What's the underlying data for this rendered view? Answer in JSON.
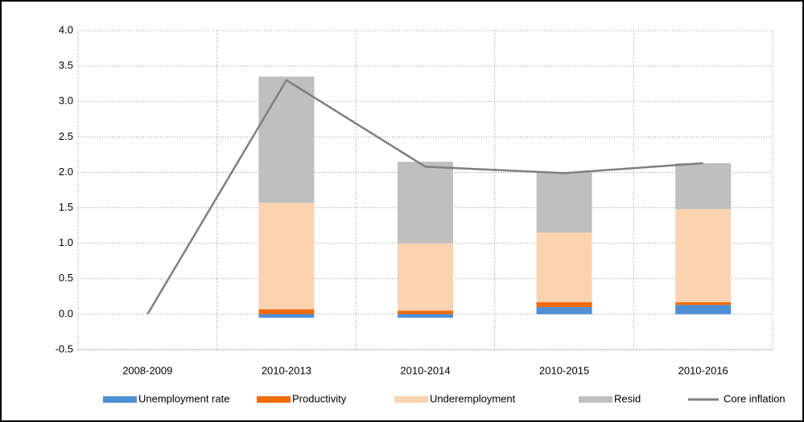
{
  "chart_data": {
    "type": "stacked-bar-line",
    "categories": [
      "2008-2009",
      "2010-2013",
      "2010-2014",
      "2010-2015",
      "2010-2016"
    ],
    "series": [
      {
        "name": "Unemployment rate",
        "color": "#4f8fd6",
        "values": [
          0,
          -0.05,
          -0.05,
          0.1,
          0.13
        ]
      },
      {
        "name": "Productivity",
        "color": "#f26b0c",
        "values": [
          0,
          0.07,
          0.05,
          0.07,
          0.04
        ]
      },
      {
        "name": "Underemployment",
        "color": "#fbd3b0",
        "values": [
          0,
          1.5,
          0.95,
          0.98,
          1.31
        ]
      },
      {
        "name": "Resid",
        "color": "#bfbfbf",
        "values": [
          0,
          1.78,
          1.15,
          0.85,
          0.65
        ]
      },
      {
        "name": "Core inflation",
        "color": "#7f7f7f",
        "type": "line",
        "values": [
          0,
          3.3,
          2.08,
          1.99,
          2.13
        ]
      }
    ],
    "ylim": [
      -0.5,
      4.0
    ],
    "yticks": [
      -0.5,
      {
        "value": 0,
        "label": "0.0"
      },
      0.5,
      {
        "value": 1,
        "label": "1.0"
      },
      1.5,
      {
        "value": 2,
        "label": "2.0"
      },
      2.5,
      {
        "value": 3,
        "label": "3.0"
      },
      3.5,
      {
        "value": 4,
        "label": "4.0"
      }
    ],
    "grid": true,
    "legend": "bottom"
  }
}
